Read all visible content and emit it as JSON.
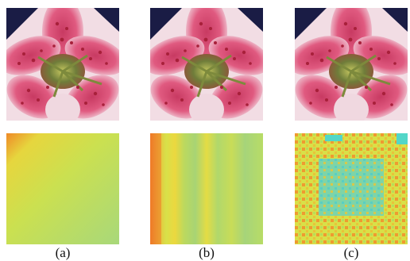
{
  "panels": [
    {
      "label": "(a)",
      "map_style": "smooth-gradient"
    },
    {
      "label": "(b)",
      "map_style": "vertical-stripes"
    },
    {
      "label": "(c)",
      "map_style": "grid-pattern"
    }
  ],
  "colors": {
    "background": "#ffffff",
    "petal_pink": "#d8406a",
    "petal_white": "#f4e4ea",
    "spot": "#a8203a",
    "center_green": "#6f7d3a",
    "map_green": "#b6dc6a",
    "map_yellow": "#e8e040",
    "map_orange": "#ef8a28",
    "map_cyan": "#52d6c8",
    "dark_corner": "#1a1c45"
  }
}
